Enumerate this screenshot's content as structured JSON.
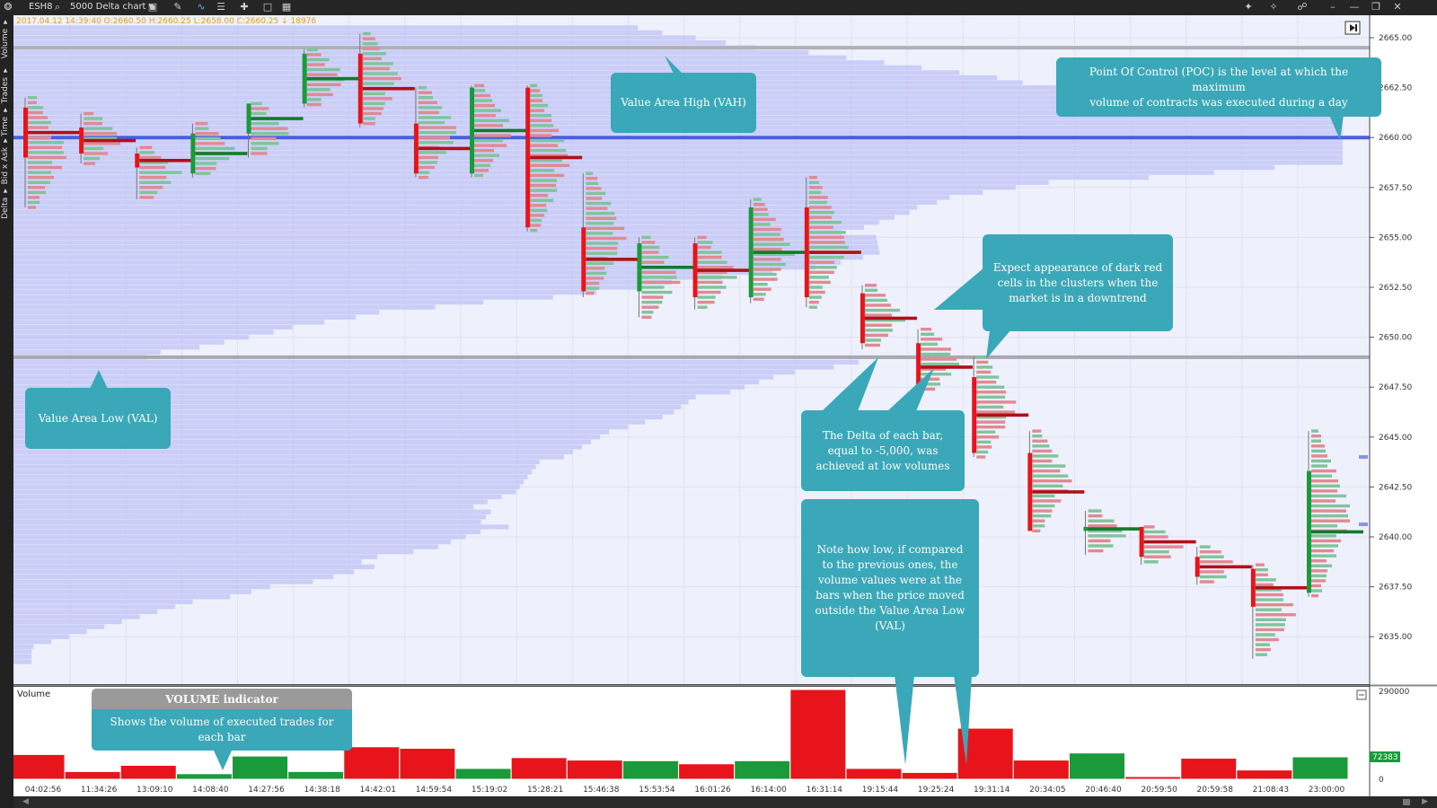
{
  "toolbar": {
    "symbol": "ESH8",
    "chart_name": "5000 Delta chart ▾",
    "icons": [
      "logo-icon",
      "search-icon",
      "monitor-icon",
      "pencil-icon",
      "line-chart-icon",
      "bars-icon",
      "crosshair-icon",
      "window-icon",
      "grid-icon"
    ],
    "right_icons": [
      "magic-icon",
      "settings-icon",
      "link-icon",
      "minimize-icon",
      "restore-icon",
      "close-icon"
    ]
  },
  "side_tabs": [
    "Volume ▾",
    "Trades ▾",
    "Time ▾",
    "Bid x Ask ▾",
    "Delta ▾"
  ],
  "ohlc_line": "2017.04.12 14:39:40  O:2660.50  H:2660.25  L:2658.00  C:2660.25  ↓ 18976",
  "price_axis": [
    "2665.00",
    "2662.50",
    "2660.00",
    "2657.50",
    "2655.00",
    "2652.50",
    "2650.00",
    "2647.50",
    "2645.00",
    "2642.50",
    "2640.00",
    "2637.50",
    "2635.00"
  ],
  "volume_axis": [
    "290000",
    "0"
  ],
  "volume_current": "72383",
  "volume_panel_label": "Volume",
  "time_axis": [
    "04:02:56",
    "11:34:26",
    "13:09:10",
    "14:08:40",
    "14:27:56",
    "14:38:18",
    "14:42:01",
    "14:59:54",
    "15:19:02",
    "15:28:21",
    "15:46:38",
    "15:53:54",
    "16:01:26",
    "16:14:00",
    "16:31:14",
    "19:15:44",
    "19:25:24",
    "19:31:14",
    "20:34:05",
    "20:46:40",
    "20:59:50",
    "20:59:58",
    "21:08:43",
    "23:00:00"
  ],
  "callouts": {
    "vah": "Value Area High (VAH)",
    "poc": "Point Of Control (POC) is the level at which the maximum\nvolume of contracts was executed during a day",
    "val": "Value Area Low (VAL)",
    "dark_red": "Expect appearance of dark red\ncells in the clusters when the\nmarket is in a downtrend",
    "delta": "The Delta of each bar,\nequal to -5,000, was\nachieved at low volumes",
    "note": "Note how low, if compared\nto the previous ones, the\nvolume values were at the\nbars when the price moved\noutside the Value Area Low\n(VAL)",
    "volume_title": "VOLUME indicator",
    "volume_desc": "Shows the volume of executed trades for\neach bar"
  },
  "colors": {
    "bull": "#1a9a3a",
    "bear": "#e8141c",
    "poc_line": "#4a5fe0",
    "profile": "#c4c8f4",
    "callout": "#3aa8b8",
    "chart_bg": "#eef0fc"
  },
  "chart_data": {
    "type": "bar",
    "price_levels": [
      2665,
      2662.5,
      2660,
      2657.5,
      2655,
      2652.5,
      2650,
      2647.5,
      2645,
      2642.5,
      2640,
      2637.5,
      2635
    ],
    "levels": {
      "vah": 2664.5,
      "poc": 2660.0,
      "val": 2649.0
    },
    "candles": [
      {
        "t": "04:02:56",
        "o": 2661.5,
        "c": 2659.0,
        "h": 2662.0,
        "l": 2656.5
      },
      {
        "t": "11:34:26",
        "o": 2660.5,
        "c": 2659.2,
        "h": 2661.2,
        "l": 2658.7
      },
      {
        "t": "13:09:10",
        "o": 2659.2,
        "c": 2658.5,
        "h": 2659.5,
        "l": 2656.9
      },
      {
        "t": "14:08:40",
        "o": 2658.2,
        "c": 2660.2,
        "h": 2660.7,
        "l": 2658.0
      },
      {
        "t": "14:27:56",
        "o": 2660.2,
        "c": 2661.7,
        "h": 2661.7,
        "l": 2659.0
      },
      {
        "t": "14:38:18",
        "o": 2661.7,
        "c": 2664.2,
        "h": 2664.4,
        "l": 2661.5
      },
      {
        "t": "14:42:01",
        "o": 2664.2,
        "c": 2660.7,
        "h": 2665.2,
        "l": 2660.5
      },
      {
        "t": "14:59:54",
        "o": 2660.7,
        "c": 2658.2,
        "h": 2662.5,
        "l": 2658.0
      },
      {
        "t": "15:19:02",
        "o": 2658.2,
        "c": 2662.5,
        "h": 2662.6,
        "l": 2658.0
      },
      {
        "t": "15:28:21",
        "o": 2662.5,
        "c": 2655.5,
        "h": 2662.6,
        "l": 2655.3
      },
      {
        "t": "15:46:38",
        "o": 2655.5,
        "c": 2652.3,
        "h": 2658.2,
        "l": 2652.0
      },
      {
        "t": "15:53:54",
        "o": 2652.3,
        "c": 2654.7,
        "h": 2655.0,
        "l": 2651.0
      },
      {
        "t": "16:01:26",
        "o": 2654.7,
        "c": 2652.0,
        "h": 2655.0,
        "l": 2651.4
      },
      {
        "t": "16:14:00",
        "o": 2652.0,
        "c": 2656.5,
        "h": 2656.9,
        "l": 2651.7
      },
      {
        "t": "16:31:14",
        "o": 2656.5,
        "c": 2652.0,
        "h": 2658.0,
        "l": 2651.5
      },
      {
        "t": "19:15:44",
        "o": 2652.2,
        "c": 2649.7,
        "h": 2652.6,
        "l": 2649.4
      },
      {
        "t": "19:25:24",
        "o": 2649.7,
        "c": 2647.3,
        "h": 2650.4,
        "l": 2647.2
      },
      {
        "t": "19:31:14",
        "o": 2648.0,
        "c": 2644.2,
        "h": 2649.0,
        "l": 2644.0
      },
      {
        "t": "20:34:05",
        "o": 2644.2,
        "c": 2640.3,
        "h": 2645.3,
        "l": 2640.3
      },
      {
        "t": "20:46:40",
        "o": 2640.3,
        "c": 2640.5,
        "h": 2641.3,
        "l": 2639.1
      },
      {
        "t": "20:59:50",
        "o": 2640.5,
        "c": 2639.0,
        "h": 2640.5,
        "l": 2638.6
      },
      {
        "t": "20:59:58",
        "o": 2639.0,
        "c": 2638.0,
        "h": 2639.5,
        "l": 2637.6
      },
      {
        "t": "21:08:43",
        "o": 2638.4,
        "c": 2636.5,
        "h": 2638.6,
        "l": 2633.9
      },
      {
        "t": "23:00:00",
        "o": 2637.2,
        "c": 2643.3,
        "h": 2645.3,
        "l": 2637.0
      }
    ],
    "volumes": [
      80000,
      25000,
      45000,
      18000,
      75000,
      25000,
      105000,
      100000,
      35000,
      70000,
      62000,
      60000,
      50000,
      60000,
      290000,
      35000,
      22000,
      165000,
      62000,
      85000,
      8000,
      68000,
      30000,
      72383
    ],
    "volume_ylim": [
      0,
      290000
    ],
    "ylim": [
      2633.5,
      2665.5
    ]
  }
}
